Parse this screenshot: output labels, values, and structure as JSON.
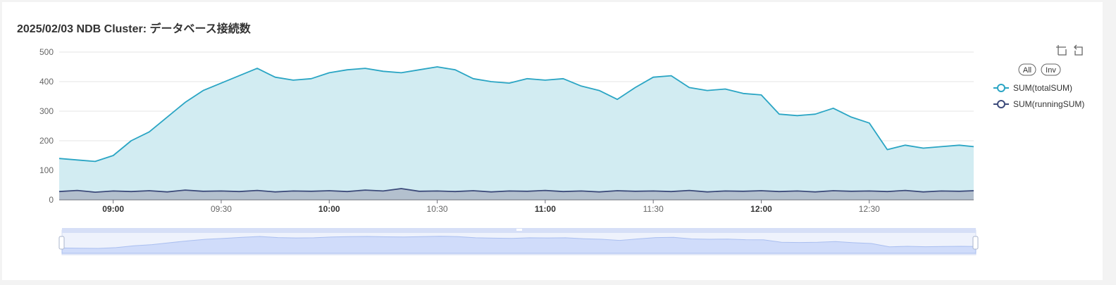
{
  "title": "2025/02/03 NDB Cluster: データベース接続数",
  "toolbar": {
    "zoom_icon": "data-zoom-icon",
    "reset_icon": "zoom-reset-icon"
  },
  "legend": {
    "all_label": "All",
    "inv_label": "Inv"
  },
  "colors": {
    "total_line": "#2aa5c4",
    "total_fill": "#d2ecf2",
    "running_line": "#3c4a7a",
    "running_fill": "#aeb8c8",
    "grid": "#e6e6e6",
    "slider_fill": "#dbe5fb",
    "slider_line": "#b8c7f0"
  },
  "chart_data": {
    "type": "area",
    "title": "2025/02/03 NDB Cluster: データベース接続数",
    "xlabel": "",
    "ylabel": "",
    "x_range": [
      "08:45",
      "12:59"
    ],
    "x_ticks": [
      "09:00",
      "09:30",
      "10:00",
      "10:30",
      "11:00",
      "11:30",
      "12:00",
      "12:30"
    ],
    "x_ticks_bold": [
      true,
      false,
      true,
      false,
      true,
      false,
      true,
      false
    ],
    "y_ticks": [
      0,
      100,
      200,
      300,
      400,
      500
    ],
    "ylim": [
      0,
      500
    ],
    "grid": true,
    "legend_position": "right",
    "series": [
      {
        "name": "SUM(totalSUM)",
        "x": [
          "08:45",
          "08:50",
          "08:55",
          "09:00",
          "09:05",
          "09:10",
          "09:15",
          "09:20",
          "09:25",
          "09:30",
          "09:35",
          "09:40",
          "09:45",
          "09:50",
          "09:55",
          "10:00",
          "10:05",
          "10:10",
          "10:15",
          "10:20",
          "10:25",
          "10:30",
          "10:35",
          "10:40",
          "10:45",
          "10:50",
          "10:55",
          "11:00",
          "11:05",
          "11:10",
          "11:15",
          "11:20",
          "11:25",
          "11:30",
          "11:35",
          "11:40",
          "11:45",
          "11:50",
          "11:55",
          "12:00",
          "12:05",
          "12:10",
          "12:15",
          "12:20",
          "12:25",
          "12:30",
          "12:35",
          "12:40",
          "12:45",
          "12:50",
          "12:55",
          "12:59"
        ],
        "y": [
          140,
          135,
          130,
          150,
          200,
          230,
          280,
          330,
          370,
          395,
          420,
          445,
          415,
          405,
          410,
          430,
          440,
          445,
          435,
          430,
          440,
          450,
          440,
          410,
          400,
          395,
          410,
          405,
          410,
          385,
          370,
          340,
          380,
          415,
          420,
          380,
          370,
          375,
          360,
          355,
          290,
          285,
          290,
          310,
          280,
          260,
          170,
          185,
          175,
          180,
          185,
          180
        ]
      },
      {
        "name": "SUM(runningSUM)",
        "x": [
          "08:45",
          "08:50",
          "08:55",
          "09:00",
          "09:05",
          "09:10",
          "09:15",
          "09:20",
          "09:25",
          "09:30",
          "09:35",
          "09:40",
          "09:45",
          "09:50",
          "09:55",
          "10:00",
          "10:05",
          "10:10",
          "10:15",
          "10:20",
          "10:25",
          "10:30",
          "10:35",
          "10:40",
          "10:45",
          "10:50",
          "10:55",
          "11:00",
          "11:05",
          "11:10",
          "11:15",
          "11:20",
          "11:25",
          "11:30",
          "11:35",
          "11:40",
          "11:45",
          "11:50",
          "11:55",
          "12:00",
          "12:05",
          "12:10",
          "12:15",
          "12:20",
          "12:25",
          "12:30",
          "12:35",
          "12:40",
          "12:45",
          "12:50",
          "12:55",
          "12:59"
        ],
        "y": [
          28,
          32,
          26,
          30,
          28,
          31,
          27,
          33,
          29,
          30,
          28,
          32,
          27,
          30,
          29,
          31,
          28,
          33,
          30,
          38,
          29,
          30,
          28,
          31,
          27,
          30,
          29,
          32,
          28,
          30,
          27,
          31,
          29,
          30,
          28,
          32,
          27,
          30,
          29,
          31,
          28,
          30,
          27,
          31,
          29,
          30,
          28,
          32,
          27,
          30,
          29,
          31
        ]
      }
    ]
  }
}
